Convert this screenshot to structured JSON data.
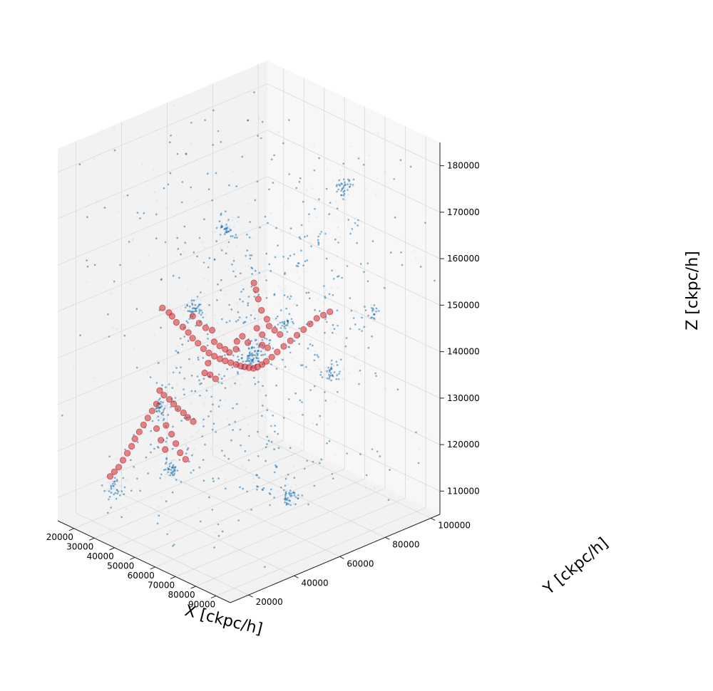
{
  "chart_data": {
    "type": "scatter",
    "projection": "3d",
    "grid": true,
    "xlabel": "X [ckpc/h]",
    "ylabel": "Y [ckpc/h]",
    "zlabel": "Z [ckpc/h]",
    "xlim": [
      12000,
      97000
    ],
    "ylim": [
      12000,
      104000
    ],
    "zlim": [
      105000,
      185000
    ],
    "xticks": [
      "20000",
      "30000",
      "40000",
      "50000",
      "60000",
      "70000",
      "80000",
      "90000"
    ],
    "yticks": [
      "20000",
      "40000",
      "60000",
      "80000",
      "100000"
    ],
    "zticks": [
      "110000",
      "120000",
      "130000",
      "140000",
      "150000",
      "160000",
      "170000",
      "180000"
    ],
    "series": [
      {
        "role": "particles",
        "color": "#1f77b4",
        "alpha": 0.08,
        "marker_size": 1.3,
        "approx_count": 9000,
        "note_points": "dense cosmic-web filament structure filling the volume; main knot near (55000, 60000, 140000)"
      },
      {
        "role": "selected-halos",
        "color": "#d62728",
        "edgecolor": "#b02a3a",
        "alpha": 0.55,
        "marker_size": 7,
        "points": [
          [
            35500,
            37000,
            150500
          ],
          [
            37000,
            38500,
            149500
          ],
          [
            38000,
            39000,
            148800
          ],
          [
            39000,
            40000,
            147500
          ],
          [
            40500,
            41500,
            146500
          ],
          [
            41500,
            43000,
            145200
          ],
          [
            42500,
            44000,
            144000
          ],
          [
            43500,
            45500,
            142800
          ],
          [
            44500,
            47000,
            141500
          ],
          [
            45500,
            48500,
            140500
          ],
          [
            46500,
            50000,
            139700
          ],
          [
            47500,
            51500,
            139000
          ],
          [
            48500,
            53000,
            138500
          ],
          [
            49500,
            54500,
            138000
          ],
          [
            50500,
            56000,
            137500
          ],
          [
            51500,
            57000,
            137200
          ],
          [
            52500,
            58000,
            137000
          ],
          [
            53500,
            59000,
            136800
          ],
          [
            54500,
            60000,
            136700
          ],
          [
            55500,
            61000,
            137000
          ],
          [
            56500,
            62000,
            137500
          ],
          [
            57500,
            63000,
            138200
          ],
          [
            58500,
            64500,
            139000
          ],
          [
            59500,
            66000,
            140000
          ],
          [
            60500,
            68000,
            141000
          ],
          [
            61500,
            70000,
            142000
          ],
          [
            62500,
            72000,
            143000
          ],
          [
            63500,
            74000,
            144000
          ],
          [
            64500,
            76000,
            145000
          ],
          [
            65500,
            78000,
            146000
          ],
          [
            66500,
            80000,
            146500
          ],
          [
            67500,
            82000,
            147000
          ],
          [
            58500,
            60000,
            150000
          ],
          [
            58000,
            59000,
            152500
          ],
          [
            57500,
            58500,
            154500
          ],
          [
            57000,
            58000,
            156000
          ],
          [
            59500,
            61500,
            148000
          ],
          [
            60000,
            62000,
            146500
          ],
          [
            61000,
            63500,
            145500
          ],
          [
            62000,
            65000,
            144500
          ],
          [
            42000,
            44500,
            148500
          ],
          [
            43500,
            46000,
            147000
          ],
          [
            45000,
            47500,
            146000
          ],
          [
            46500,
            49000,
            145500
          ],
          [
            47000,
            49500,
            143000
          ],
          [
            48000,
            51000,
            142000
          ],
          [
            49000,
            52500,
            141200
          ],
          [
            50000,
            53500,
            140500
          ],
          [
            44000,
            48000,
            136000
          ],
          [
            45000,
            49500,
            135500
          ],
          [
            46000,
            51000,
            134500
          ],
          [
            44500,
            49000,
            138000
          ],
          [
            33000,
            38000,
            132000
          ],
          [
            34000,
            39000,
            131000
          ],
          [
            35000,
            40500,
            130000
          ],
          [
            36000,
            41500,
            129000
          ],
          [
            37000,
            42500,
            128000
          ],
          [
            38000,
            44000,
            127000
          ],
          [
            39000,
            45000,
            126000
          ],
          [
            40000,
            46500,
            125000
          ],
          [
            32000,
            37500,
            129000
          ],
          [
            31000,
            36500,
            127500
          ],
          [
            30000,
            35500,
            126000
          ],
          [
            29000,
            34500,
            124500
          ],
          [
            28000,
            33500,
            123000
          ],
          [
            27000,
            32500,
            121500
          ],
          [
            26500,
            31500,
            120000
          ],
          [
            25500,
            30500,
            118500
          ],
          [
            24500,
            29500,
            117000
          ],
          [
            23500,
            28500,
            115500
          ],
          [
            22500,
            27500,
            114500
          ],
          [
            21500,
            26500,
            113500
          ],
          [
            34500,
            39500,
            124500
          ],
          [
            35500,
            41000,
            122500
          ],
          [
            36500,
            42000,
            120500
          ],
          [
            37500,
            43000,
            118500
          ],
          [
            38500,
            44500,
            117000
          ],
          [
            33500,
            40000,
            119000
          ],
          [
            32500,
            39000,
            121000
          ],
          [
            31500,
            38000,
            123500
          ],
          [
            52000,
            55000,
            143000
          ],
          [
            53000,
            56500,
            144000
          ],
          [
            54000,
            58000,
            142500
          ],
          [
            51000,
            55500,
            141000
          ],
          [
            56000,
            62500,
            141500
          ],
          [
            57000,
            64000,
            140800
          ],
          [
            55500,
            63000,
            143500
          ],
          [
            54500,
            61500,
            145000
          ]
        ]
      }
    ]
  }
}
